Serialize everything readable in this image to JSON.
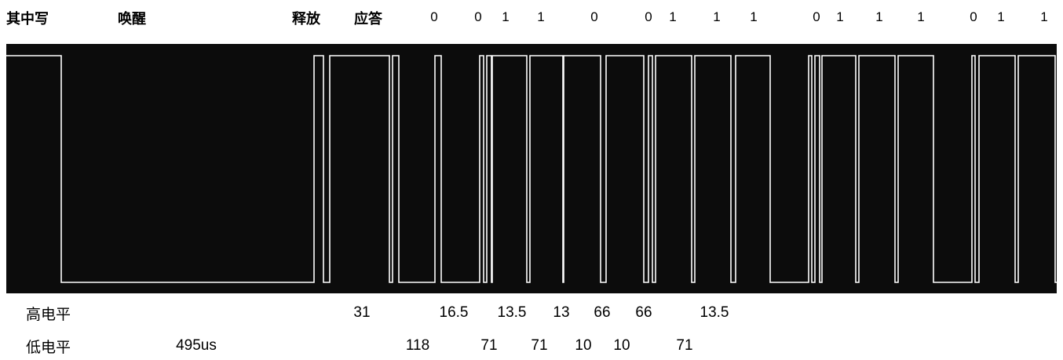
{
  "header": {
    "mode": "其中写",
    "wake": "唤醒",
    "release": "释放",
    "ack": "应答",
    "bits": [
      "0",
      "0",
      "1",
      "1",
      "0",
      "0",
      "1",
      "1",
      "1",
      "0",
      "1",
      "1",
      "1",
      "0",
      "1",
      "1"
    ]
  },
  "scope": {
    "trace_color": "#ffffff",
    "background": "#0c0c0c"
  },
  "measurements": {
    "high_label": "高电平",
    "low_label": "低电平",
    "high_values": [
      "31",
      "16.5",
      "13.5",
      "13",
      "66",
      "66",
      "13.5"
    ],
    "low_values": [
      "495us",
      "118",
      "71",
      "71",
      "10",
      "10",
      "71"
    ]
  }
}
